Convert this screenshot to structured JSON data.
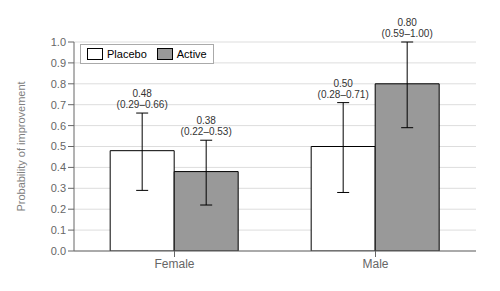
{
  "chart_data": {
    "type": "bar",
    "categories": [
      "Female",
      "Male"
    ],
    "series": [
      {
        "name": "Placebo",
        "color": "#ffffff",
        "values": [
          0.48,
          0.5
        ],
        "ci_low": [
          0.29,
          0.28
        ],
        "ci_high": [
          0.66,
          0.71
        ],
        "value_labels": [
          "0.48\n(0.29–0.66)",
          "0.50\n(0.28–0.71)"
        ]
      },
      {
        "name": "Active",
        "color": "#999999",
        "values": [
          0.38,
          0.8
        ],
        "ci_low": [
          0.22,
          0.59
        ],
        "ci_high": [
          0.53,
          1.0
        ],
        "value_labels": [
          "0.38\n(0.22–0.53)",
          "0.80\n(0.59–1.00)"
        ]
      }
    ],
    "ylabel": "Probability of improvement",
    "ylim": [
      0,
      1
    ],
    "yticks": [
      {
        "value": 0,
        "label": "0.0"
      },
      0.1,
      0.2,
      0.3,
      0.4,
      0.5,
      0.6,
      0.7,
      0.8,
      0.9,
      {
        "value": 1,
        "label": "1.0"
      }
    ],
    "grid": true,
    "legend": "upper left",
    "data_labels": true
  }
}
